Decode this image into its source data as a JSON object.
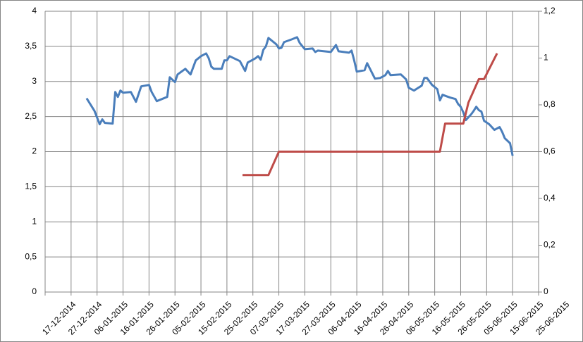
{
  "chart_data": {
    "type": "line",
    "xlim": [
      "17-12-2014",
      "25-06-2015"
    ],
    "xticks": [
      "17-12-2014",
      "27-12-2014",
      "06-01-2015",
      "16-01-2015",
      "26-01-2015",
      "05-02-2015",
      "15-02-2015",
      "25-02-2015",
      "07-03-2015",
      "17-03-2015",
      "27-03-2015",
      "06-04-2015",
      "16-04-2015",
      "26-04-2015",
      "06-05-2015",
      "16-05-2015",
      "26-05-2015",
      "05-06-2015",
      "15-06-2015",
      "25-06-2015"
    ],
    "ylim": [
      0,
      4
    ],
    "yticks": [
      0,
      {
        "value": 0.5,
        "label": "0,5"
      },
      1,
      {
        "value": 1.5,
        "label": "1,5"
      },
      2,
      {
        "value": 2.5,
        "label": "2,5"
      },
      3,
      {
        "value": 3.5,
        "label": "3,5"
      },
      4
    ],
    "y2lim": [
      0,
      1.2
    ],
    "y2ticks": [
      0,
      {
        "value": 0.2,
        "label": "0,2"
      },
      {
        "value": 0.4,
        "label": "0,4"
      },
      {
        "value": 0.6,
        "label": "0,6"
      },
      {
        "value": 0.8,
        "label": "0,8"
      },
      1,
      {
        "value": 1.2,
        "label": "1,2"
      }
    ],
    "grid": true,
    "series": [
      {
        "color": "#4a7ebb",
        "x": [
          "02-01-2015",
          "05-01-2015",
          "07-01-2015",
          "08-01-2015",
          "09-01-2015",
          "12-01-2015",
          "13-01-2015",
          "14-01-2015",
          "15-01-2015",
          "16-01-2015",
          "19-01-2015",
          "21-01-2015",
          "23-01-2015",
          "26-01-2015",
          "27-01-2015",
          "29-01-2015",
          "02-02-2015",
          "03-02-2015",
          "05-02-2015",
          "06-02-2015",
          "09-02-2015",
          "11-02-2015",
          "13-02-2015",
          "15-02-2015",
          "17-02-2015",
          "18-02-2015",
          "19-02-2015",
          "20-02-2015",
          "23-02-2015",
          "24-02-2015",
          "25-02-2015",
          "26-02-2015",
          "02-03-2015",
          "04-03-2015",
          "05-03-2015",
          "08-03-2015",
          "09-03-2015",
          "10-03-2015",
          "11-03-2015",
          "12-03-2015",
          "13-03-2015",
          "16-03-2015",
          "17-03-2015",
          "18-03-2015",
          "19-03-2015",
          "22-03-2015",
          "24-03-2015",
          "25-03-2015",
          "27-03-2015",
          "30-03-2015",
          "31-03-2015",
          "01-04-2015",
          "06-04-2015",
          "08-04-2015",
          "09-04-2015",
          "13-04-2015",
          "14-04-2015",
          "15-04-2015",
          "16-04-2015",
          "19-04-2015",
          "20-04-2015",
          "23-04-2015",
          "25-04-2015",
          "27-04-2015",
          "28-04-2015",
          "29-04-2015",
          "03-05-2015",
          "05-05-2015",
          "06-05-2015",
          "08-05-2015",
          "11-05-2015",
          "12-05-2015",
          "13-05-2015",
          "15-05-2015",
          "17-05-2015",
          "18-05-2015",
          "19-05-2015",
          "22-05-2015",
          "24-05-2015",
          "25-05-2015",
          "26-05-2015",
          "27-05-2015",
          "28-05-2015",
          "30-05-2015",
          "31-05-2015",
          "01-06-2015",
          "02-06-2015",
          "03-06-2015",
          "04-06-2015",
          "06-06-2015",
          "08-06-2015",
          "10-06-2015",
          "11-06-2015",
          "12-06-2015",
          "14-06-2015",
          "15-06-2015"
        ],
        "values": [
          2.76,
          2.58,
          2.39,
          2.46,
          2.41,
          2.4,
          2.85,
          2.78,
          2.87,
          2.84,
          2.85,
          2.71,
          2.93,
          2.95,
          2.85,
          2.72,
          2.78,
          3.06,
          2.99,
          3.1,
          3.18,
          3.1,
          3.3,
          3.36,
          3.4,
          3.33,
          3.21,
          3.18,
          3.18,
          3.3,
          3.3,
          3.36,
          3.29,
          3.15,
          3.27,
          3.33,
          3.36,
          3.31,
          3.45,
          3.5,
          3.62,
          3.53,
          3.47,
          3.48,
          3.56,
          3.6,
          3.63,
          3.55,
          3.46,
          3.47,
          3.42,
          3.44,
          3.42,
          3.52,
          3.43,
          3.41,
          3.44,
          3.3,
          3.14,
          3.16,
          3.26,
          3.04,
          3.05,
          3.09,
          3.15,
          3.09,
          3.1,
          3.03,
          2.91,
          2.87,
          2.94,
          3.05,
          3.05,
          2.95,
          2.89,
          2.73,
          2.81,
          2.77,
          2.75,
          2.68,
          2.64,
          2.56,
          2.45,
          2.53,
          2.58,
          2.64,
          2.59,
          2.57,
          2.44,
          2.39,
          2.31,
          2.35,
          2.28,
          2.19,
          2.12,
          1.94
        ]
      },
      {
        "color": "#be4b48",
        "axis": "y2",
        "x": [
          "03-03-2015",
          "13-03-2015",
          "17-03-2015",
          "18-05-2015",
          "20-05-2015",
          "27-05-2015",
          "29-05-2015",
          "02-06-2015",
          "04-06-2015",
          "09-06-2015"
        ],
        "values": [
          0.5,
          0.5,
          0.6,
          0.6,
          0.72,
          0.72,
          0.81,
          0.91,
          0.91,
          1.02
        ]
      }
    ]
  }
}
